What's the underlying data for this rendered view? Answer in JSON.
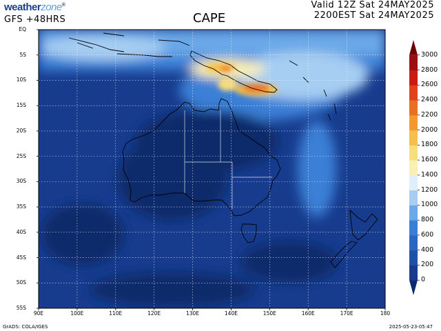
{
  "brand": {
    "name": "weather",
    "suffix": "zone",
    "registered": "®"
  },
  "model_label": "GFS  +48HRS",
  "title": "CAPE",
  "valid_time": "Valid 12Z Sat 24MAY2025",
  "local_time": "2200EST Sat 24MAY2025",
  "credit": "GrADS: COLA/IGES",
  "timestamp": "2025-05-23-05:47",
  "axes": {
    "lat_labels": [
      "EQ",
      "5S",
      "10S",
      "15S",
      "20S",
      "25S",
      "30S",
      "35S",
      "40S",
      "45S",
      "50S",
      "55S"
    ],
    "lon_labels": [
      "90E",
      "100E",
      "110E",
      "120E",
      "130E",
      "140E",
      "150E",
      "160E",
      "170E",
      "180"
    ]
  },
  "colorbar": {
    "levels": [
      "0",
      "200",
      "400",
      "600",
      "800",
      "1000",
      "1200",
      "1400",
      "1600",
      "1800",
      "2000",
      "2200",
      "2400",
      "2600",
      "2800",
      "3000"
    ],
    "colors": [
      "#0c2a6b",
      "#173c8e",
      "#1f51a8",
      "#2a66c2",
      "#3a7fd6",
      "#6aa8e8",
      "#a6cdf2",
      "#e1eefb",
      "#fbf0b4",
      "#f9dc7c",
      "#f6bf4a",
      "#f29a2c",
      "#ec6e22",
      "#e0431c",
      "#c81b16",
      "#9e0e10",
      "#6e0408"
    ]
  },
  "colors": {
    "ocean_base": "#173c8e",
    "coast": "#000000",
    "state_borders": "#aab4c8",
    "grid": "#ffffff"
  }
}
